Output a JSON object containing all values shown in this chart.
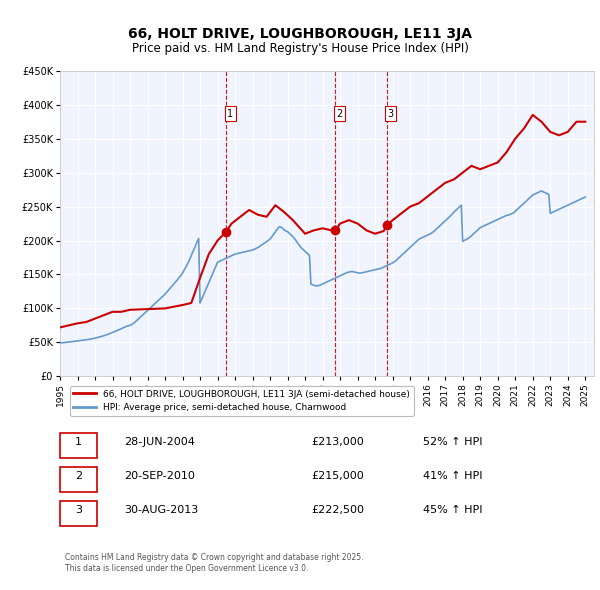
{
  "title": "66, HOLT DRIVE, LOUGHBOROUGH, LE11 3JA",
  "subtitle": "Price paid vs. HM Land Registry's House Price Index (HPI)",
  "xlabel": "",
  "ylabel": "",
  "ylim": [
    0,
    450000
  ],
  "yticks": [
    0,
    50000,
    100000,
    150000,
    200000,
    250000,
    300000,
    350000,
    400000,
    450000
  ],
  "ytick_labels": [
    "£0",
    "£50K",
    "£100K",
    "£150K",
    "£200K",
    "£250K",
    "£300K",
    "£350K",
    "£400K",
    "£450K"
  ],
  "bg_color": "#f0f4ff",
  "grid_color": "#ffffff",
  "red_line_color": "#cc0000",
  "blue_line_color": "#6699cc",
  "sale_marker_color": "#cc0000",
  "vline_color": "#cc0000",
  "legend_label_red": "66, HOLT DRIVE, LOUGHBOROUGH, LE11 3JA (semi-detached house)",
  "legend_label_blue": "HPI: Average price, semi-detached house, Charnwood",
  "sales": [
    {
      "num": 1,
      "date_x": 2004.49,
      "price": 213000,
      "label": "28-JUN-2004",
      "price_label": "£213,000",
      "hpi_label": "52% ↑ HPI"
    },
    {
      "num": 2,
      "date_x": 2010.72,
      "price": 215000,
      "label": "20-SEP-2010",
      "price_label": "£215,000",
      "hpi_label": "41% ↑ HPI"
    },
    {
      "num": 3,
      "date_x": 2013.66,
      "price": 222500,
      "label": "30-AUG-2013",
      "price_label": "£222,500",
      "hpi_label": "45% ↑ HPI"
    }
  ],
  "footer": "Contains HM Land Registry data © Crown copyright and database right 2025.\nThis data is licensed under the Open Government Licence v3.0.",
  "hpi_data": {
    "x": [
      1995.0,
      1995.08,
      1995.17,
      1995.25,
      1995.33,
      1995.42,
      1995.5,
      1995.58,
      1995.67,
      1995.75,
      1995.83,
      1995.92,
      1996.0,
      1996.08,
      1996.17,
      1996.25,
      1996.33,
      1996.42,
      1996.5,
      1996.58,
      1996.67,
      1996.75,
      1996.83,
      1996.92,
      1997.0,
      1997.08,
      1997.17,
      1997.25,
      1997.33,
      1997.42,
      1997.5,
      1997.58,
      1997.67,
      1997.75,
      1997.83,
      1997.92,
      1998.0,
      1998.08,
      1998.17,
      1998.25,
      1998.33,
      1998.42,
      1998.5,
      1998.58,
      1998.67,
      1998.75,
      1998.83,
      1998.92,
      1999.0,
      1999.08,
      1999.17,
      1999.25,
      1999.33,
      1999.42,
      1999.5,
      1999.58,
      1999.67,
      1999.75,
      1999.83,
      1999.92,
      2000.0,
      2000.08,
      2000.17,
      2000.25,
      2000.33,
      2000.42,
      2000.5,
      2000.58,
      2000.67,
      2000.75,
      2000.83,
      2000.92,
      2001.0,
      2001.08,
      2001.17,
      2001.25,
      2001.33,
      2001.42,
      2001.5,
      2001.58,
      2001.67,
      2001.75,
      2001.83,
      2001.92,
      2002.0,
      2002.08,
      2002.17,
      2002.25,
      2002.33,
      2002.42,
      2002.5,
      2002.58,
      2002.67,
      2002.75,
      2002.83,
      2002.92,
      2003.0,
      2003.08,
      2003.17,
      2003.25,
      2003.33,
      2003.42,
      2003.5,
      2003.58,
      2003.67,
      2003.75,
      2003.83,
      2003.92,
      2004.0,
      2004.08,
      2004.17,
      2004.25,
      2004.33,
      2004.42,
      2004.5,
      2004.58,
      2004.67,
      2004.75,
      2004.83,
      2004.92,
      2005.0,
      2005.08,
      2005.17,
      2005.25,
      2005.33,
      2005.42,
      2005.5,
      2005.58,
      2005.67,
      2005.75,
      2005.83,
      2005.92,
      2006.0,
      2006.08,
      2006.17,
      2006.25,
      2006.33,
      2006.42,
      2006.5,
      2006.58,
      2006.67,
      2006.75,
      2006.83,
      2006.92,
      2007.0,
      2007.08,
      2007.17,
      2007.25,
      2007.33,
      2007.42,
      2007.5,
      2007.58,
      2007.67,
      2007.75,
      2007.83,
      2007.92,
      2008.0,
      2008.08,
      2008.17,
      2008.25,
      2008.33,
      2008.42,
      2008.5,
      2008.58,
      2008.67,
      2008.75,
      2008.83,
      2008.92,
      2009.0,
      2009.08,
      2009.17,
      2009.25,
      2009.33,
      2009.42,
      2009.5,
      2009.58,
      2009.67,
      2009.75,
      2009.83,
      2009.92,
      2010.0,
      2010.08,
      2010.17,
      2010.25,
      2010.33,
      2010.42,
      2010.5,
      2010.58,
      2010.67,
      2010.75,
      2010.83,
      2010.92,
      2011.0,
      2011.08,
      2011.17,
      2011.25,
      2011.33,
      2011.42,
      2011.5,
      2011.58,
      2011.67,
      2011.75,
      2011.83,
      2011.92,
      2012.0,
      2012.08,
      2012.17,
      2012.25,
      2012.33,
      2012.42,
      2012.5,
      2012.58,
      2012.67,
      2012.75,
      2012.83,
      2012.92,
      2013.0,
      2013.08,
      2013.17,
      2013.25,
      2013.33,
      2013.42,
      2013.5,
      2013.58,
      2013.67,
      2013.75,
      2013.83,
      2013.92,
      2014.0,
      2014.08,
      2014.17,
      2014.25,
      2014.33,
      2014.42,
      2014.5,
      2014.58,
      2014.67,
      2014.75,
      2014.83,
      2014.92,
      2015.0,
      2015.08,
      2015.17,
      2015.25,
      2015.33,
      2015.42,
      2015.5,
      2015.58,
      2015.67,
      2015.75,
      2015.83,
      2015.92,
      2016.0,
      2016.08,
      2016.17,
      2016.25,
      2016.33,
      2016.42,
      2016.5,
      2016.58,
      2016.67,
      2016.75,
      2016.83,
      2016.92,
      2017.0,
      2017.08,
      2017.17,
      2017.25,
      2017.33,
      2017.42,
      2017.5,
      2017.58,
      2017.67,
      2017.75,
      2017.83,
      2017.92,
      2018.0,
      2018.08,
      2018.17,
      2018.25,
      2018.33,
      2018.42,
      2018.5,
      2018.58,
      2018.67,
      2018.75,
      2018.83,
      2018.92,
      2019.0,
      2019.08,
      2019.17,
      2019.25,
      2019.33,
      2019.42,
      2019.5,
      2019.58,
      2019.67,
      2019.75,
      2019.83,
      2019.92,
      2020.0,
      2020.08,
      2020.17,
      2020.25,
      2020.33,
      2020.42,
      2020.5,
      2020.58,
      2020.67,
      2020.75,
      2020.83,
      2020.92,
      2021.0,
      2021.08,
      2021.17,
      2021.25,
      2021.33,
      2021.42,
      2021.5,
      2021.58,
      2021.67,
      2021.75,
      2021.83,
      2021.92,
      2022.0,
      2022.08,
      2022.17,
      2022.25,
      2022.33,
      2022.42,
      2022.5,
      2022.58,
      2022.67,
      2022.75,
      2022.83,
      2022.92,
      2023.0,
      2023.08,
      2023.17,
      2023.25,
      2023.33,
      2023.42,
      2023.5,
      2023.58,
      2023.67,
      2023.75,
      2023.83,
      2023.92,
      2024.0,
      2024.08,
      2024.17,
      2024.25,
      2024.33,
      2024.42,
      2024.5,
      2024.58,
      2024.67,
      2024.75,
      2024.83,
      2024.92,
      2025.0
    ],
    "y": [
      49000,
      49200,
      49500,
      49800,
      50000,
      50200,
      50500,
      50700,
      51000,
      51200,
      51500,
      51700,
      52000,
      52300,
      52600,
      52900,
      53200,
      53500,
      53800,
      54100,
      54500,
      54900,
      55300,
      55700,
      56200,
      56700,
      57200,
      57800,
      58400,
      59000,
      59700,
      60400,
      61200,
      62000,
      62800,
      63600,
      64500,
      65400,
      66300,
      67200,
      68100,
      69000,
      70000,
      71000,
      72000,
      73000,
      74000,
      74500,
      75000,
      76000,
      77500,
      79000,
      81000,
      83000,
      85000,
      87000,
      89000,
      91000,
      93000,
      95000,
      97000,
      99000,
      101000,
      103000,
      105000,
      107000,
      109000,
      111000,
      113000,
      115000,
      117000,
      119000,
      121000,
      123500,
      126000,
      128500,
      131000,
      133500,
      136000,
      138500,
      141000,
      143500,
      146000,
      149000,
      152000,
      156000,
      160000,
      164000,
      168000,
      173000,
      178000,
      183000,
      188000,
      193000,
      198000,
      203000,
      108000,
      113000,
      118000,
      123000,
      128000,
      133000,
      138000,
      143000,
      148000,
      153000,
      158000,
      163000,
      168000,
      169000,
      170000,
      171000,
      172000,
      173000,
      174000,
      175000,
      176000,
      177000,
      178000,
      179000,
      180000,
      180500,
      181000,
      181500,
      182000,
      182500,
      183000,
      183500,
      184000,
      184500,
      185000,
      185500,
      186000,
      187000,
      188000,
      189000,
      190000,
      191500,
      193000,
      194500,
      196000,
      197500,
      199000,
      200500,
      202000,
      205000,
      208000,
      211000,
      214000,
      217000,
      220000,
      220000,
      219000,
      217000,
      215000,
      214000,
      213000,
      211000,
      209000,
      207000,
      205000,
      202000,
      199000,
      196000,
      193000,
      190000,
      188000,
      186000,
      184000,
      182000,
      180000,
      178000,
      136000,
      135000,
      134000,
      133500,
      133000,
      133500,
      134000,
      135000,
      136000,
      137000,
      138000,
      139000,
      140000,
      141000,
      142000,
      143000,
      144000,
      145000,
      146000,
      147000,
      148000,
      149000,
      150000,
      151000,
      152000,
      153000,
      153500,
      154000,
      154500,
      154000,
      153500,
      153000,
      152500,
      152000,
      152000,
      152500,
      153000,
      153500,
      154000,
      154500,
      155000,
      155500,
      156000,
      156500,
      157000,
      157500,
      158000,
      158500,
      159000,
      160000,
      161000,
      162000,
      163000,
      164000,
      165000,
      166000,
      167000,
      168500,
      170000,
      172000,
      174000,
      176000,
      178000,
      180000,
      182000,
      184000,
      186000,
      188000,
      190000,
      192000,
      194000,
      196000,
      198000,
      200000,
      202000,
      203000,
      204000,
      205000,
      206000,
      207000,
      208000,
      209000,
      210000,
      211500,
      213000,
      215000,
      217000,
      219000,
      221000,
      223000,
      225000,
      227000,
      229000,
      231000,
      233000,
      235000,
      237000,
      239500,
      242000,
      244000,
      246000,
      248000,
      250000,
      252000,
      199000,
      200000,
      201000,
      202000,
      203500,
      205000,
      207000,
      209000,
      211000,
      213000,
      215000,
      217000,
      219000,
      220000,
      221000,
      222000,
      223000,
      224000,
      225000,
      226000,
      227000,
      228000,
      229000,
      230000,
      231000,
      232000,
      233000,
      234000,
      235000,
      236000,
      237000,
      237500,
      238000,
      239000,
      240000,
      241000,
      243000,
      245000,
      247000,
      249000,
      251000,
      253000,
      255000,
      257000,
      259000,
      261000,
      263000,
      265000,
      267000,
      268000,
      269000,
      270000,
      271000,
      272000,
      273000,
      272000,
      271000,
      270000,
      269000,
      268000,
      240000,
      241000,
      242000,
      243000,
      244000,
      245000,
      246000,
      247000,
      248000,
      249000,
      250000,
      251000,
      252000,
      253000,
      254000,
      255000,
      256000,
      257000,
      258000,
      259000,
      260000,
      261000,
      262000,
      263000,
      264000
    ]
  },
  "price_data": {
    "x": [
      1995.0,
      1995.5,
      1996.0,
      1996.5,
      1997.0,
      1997.5,
      1998.0,
      1998.5,
      1999.0,
      2001.0,
      2002.0,
      2002.5,
      2003.0,
      2003.5,
      2004.0,
      2004.49,
      2004.8,
      2005.3,
      2005.8,
      2006.3,
      2006.8,
      2007.3,
      2007.8,
      2008.3,
      2009.0,
      2009.5,
      2010.0,
      2010.49,
      2010.72,
      2011.0,
      2011.5,
      2012.0,
      2012.5,
      2013.0,
      2013.49,
      2013.66,
      2014.0,
      2014.5,
      2015.0,
      2015.5,
      2016.0,
      2016.5,
      2017.0,
      2017.5,
      2018.0,
      2018.5,
      2019.0,
      2019.5,
      2020.0,
      2020.5,
      2021.0,
      2021.5,
      2022.0,
      2022.5,
      2023.0,
      2023.5,
      2024.0,
      2024.5,
      2025.0
    ],
    "y": [
      72000,
      75000,
      78000,
      80000,
      85000,
      90000,
      95000,
      95000,
      98000,
      100000,
      105000,
      108000,
      145000,
      180000,
      200000,
      213000,
      225000,
      235000,
      245000,
      238000,
      235000,
      252000,
      242000,
      230000,
      210000,
      215000,
      218000,
      215000,
      215000,
      225000,
      230000,
      225000,
      215000,
      210000,
      214000,
      222500,
      230000,
      240000,
      250000,
      255000,
      265000,
      275000,
      285000,
      290000,
      300000,
      310000,
      305000,
      310000,
      315000,
      330000,
      350000,
      365000,
      385000,
      375000,
      360000,
      355000,
      360000,
      375000,
      375000
    ]
  },
  "xlim": [
    1995.0,
    2025.5
  ],
  "xticks": [
    1995,
    1996,
    1997,
    1998,
    1999,
    2000,
    2001,
    2002,
    2003,
    2004,
    2005,
    2006,
    2007,
    2008,
    2009,
    2010,
    2011,
    2012,
    2013,
    2014,
    2015,
    2016,
    2017,
    2018,
    2019,
    2020,
    2021,
    2022,
    2023,
    2024,
    2025
  ]
}
